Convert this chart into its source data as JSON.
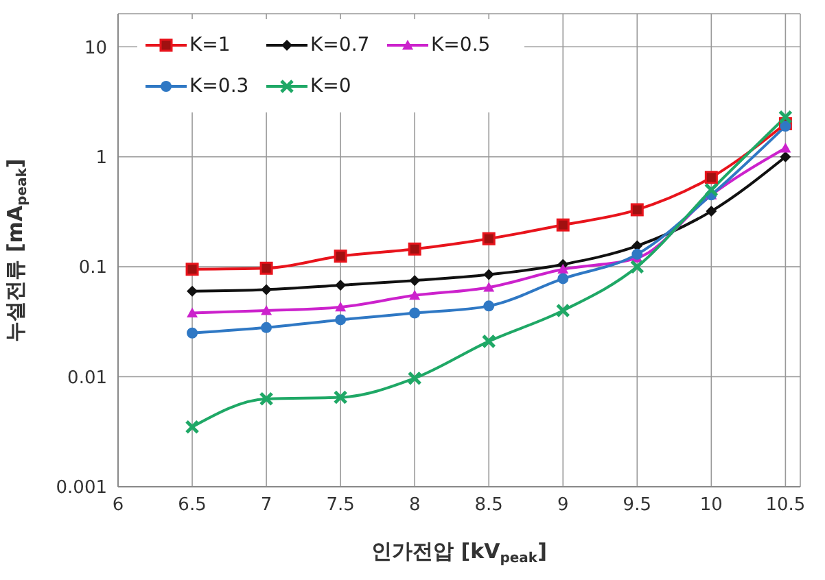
{
  "chart_data": {
    "type": "line",
    "xlabel": "인가전압 [kV$_{peak}$]",
    "ylabel": "누설전류 [mA$_{peak}$]",
    "x": [
      6.5,
      7,
      7.5,
      8,
      8.5,
      9,
      9.5,
      10,
      10.5
    ],
    "series": [
      {
        "name": "K=1",
        "color": "#e8141c",
        "marker": "square",
        "values": [
          0.095,
          0.097,
          0.125,
          0.145,
          0.18,
          0.24,
          0.33,
          0.65,
          2.0
        ]
      },
      {
        "name": "K=0.7",
        "color": "#111111",
        "marker": "diamond",
        "values": [
          0.06,
          0.062,
          0.068,
          0.075,
          0.085,
          0.105,
          0.155,
          0.32,
          1.0
        ]
      },
      {
        "name": "K=0.5",
        "color": "#cc22cc",
        "marker": "triangle",
        "values": [
          0.038,
          0.04,
          0.043,
          0.055,
          0.065,
          0.095,
          0.12,
          0.45,
          1.2
        ]
      },
      {
        "name": "K=0.3",
        "color": "#2f78c4",
        "marker": "circle",
        "values": [
          0.025,
          0.028,
          0.033,
          0.038,
          0.044,
          0.078,
          0.13,
          0.45,
          1.9
        ]
      },
      {
        "name": "K=0",
        "color": "#1fa866",
        "marker": "cross",
        "values": [
          0.0035,
          0.0063,
          0.0065,
          0.0097,
          0.021,
          0.04,
          0.1,
          0.5,
          2.3
        ]
      }
    ],
    "xlim": [
      6,
      10.6
    ],
    "xticks": [
      6,
      6.5,
      7,
      7.5,
      8,
      8.5,
      9,
      9.5,
      10,
      10.5
    ],
    "ylim": [
      0.001,
      20
    ],
    "yticks": [
      0.001,
      0.01,
      0.1,
      1,
      10
    ],
    "log": "y",
    "grid": true,
    "legend": "top left",
    "line_style": "solid"
  }
}
